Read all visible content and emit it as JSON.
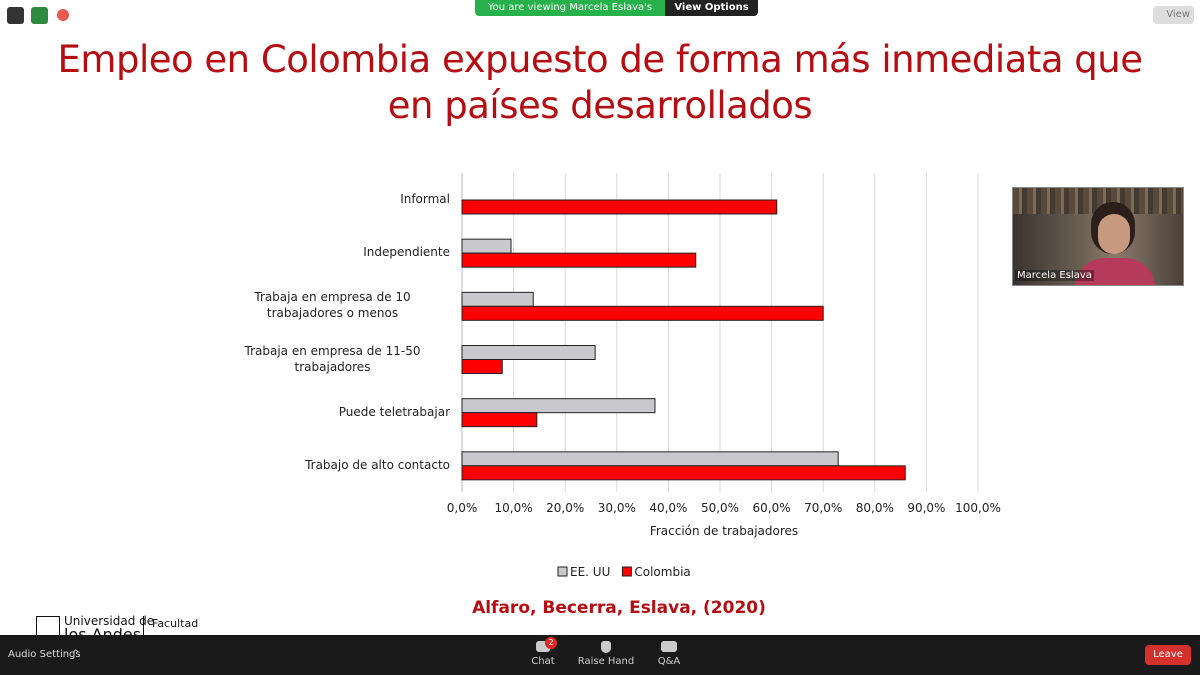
{
  "zoom": {
    "banner": "You are viewing Marcela Eslava's screen",
    "view_options": "View Options",
    "view_button": "View",
    "participant": "Marcela Eslava",
    "audio_settings": "Audio Settings",
    "chat": "Chat",
    "chat_badge": 2,
    "raise_hand": "Raise Hand",
    "qa": "Q&A",
    "leave": "Leave"
  },
  "slide": {
    "title_line1": "Empleo en Colombia expuesto de forma más inmediata que",
    "title_line2": "en países desarrollados",
    "citation": "Alfaro, Becerra, Eslava, (2020)",
    "logo_line1": "Universidad de",
    "logo_line2": "los Andes",
    "logo_faculty": "Facultad"
  },
  "chart_data": {
    "type": "hbar",
    "categories": [
      "Informal",
      "Independiente",
      "Trabaja en empresa de 10 trabajadores o menos",
      "Trabaja en empresa de 11-50 trabajadores",
      "Puede teletrabajar",
      "Trabajo de alto contacto"
    ],
    "series": [
      {
        "name": "EE. UU",
        "color": "#c9c9cd",
        "values": [
          null,
          9.5,
          13.8,
          25.8,
          37.4,
          72.9
        ]
      },
      {
        "name": "Colombia",
        "color": "#ff0000",
        "values": [
          61.0,
          45.3,
          70.0,
          7.8,
          14.5,
          85.9
        ]
      }
    ],
    "x_label": "Fracción de trabajadores",
    "xlim": [
      0,
      100
    ],
    "xticks": [
      {
        "value": 0,
        "label": "0,0%"
      },
      {
        "value": 10,
        "label": "10,0%"
      },
      {
        "value": 20,
        "label": "20,0%"
      },
      {
        "value": 30,
        "label": "30,0%"
      },
      {
        "value": 40,
        "label": "40,0%"
      },
      {
        "value": 50,
        "label": "50,0%"
      },
      {
        "value": 60,
        "label": "60,0%"
      },
      {
        "value": 70,
        "label": "70,0%"
      },
      {
        "value": 80,
        "label": "80,0%"
      },
      {
        "value": 90,
        "label": "90,0%"
      },
      {
        "value": 100,
        "label": "100,0%"
      }
    ],
    "grid": true,
    "legend": "bottom"
  }
}
